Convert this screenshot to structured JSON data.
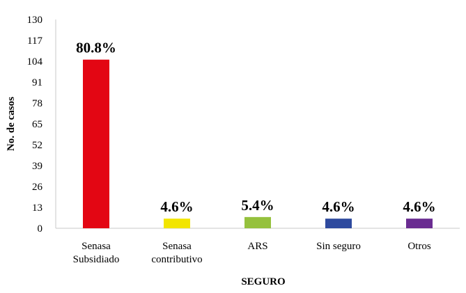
{
  "chart_data": {
    "type": "bar",
    "xlabel": "SEGURO",
    "ylabel": "No. de casos",
    "ylim": [
      0,
      130
    ],
    "yticks": [
      "0",
      "13",
      "26",
      "39",
      "52",
      "65",
      "78",
      "91",
      "104",
      "117",
      "130"
    ],
    "categories": [
      [
        "Senasa",
        "Subsidiado"
      ],
      [
        "Senasa",
        "contributivo"
      ],
      [
        "ARS"
      ],
      [
        "Sin seguro"
      ],
      [
        "Otros"
      ]
    ],
    "values": [
      105,
      6,
      7,
      6,
      6
    ],
    "data_labels": [
      "80.8%",
      "4.6%",
      "5.4%",
      "4.6%",
      "4.6%"
    ],
    "colors": [
      "#e30613",
      "#f2e500",
      "#95c13d",
      "#2e4a9e",
      "#6a2c91"
    ],
    "grid": false,
    "legend": "none"
  }
}
